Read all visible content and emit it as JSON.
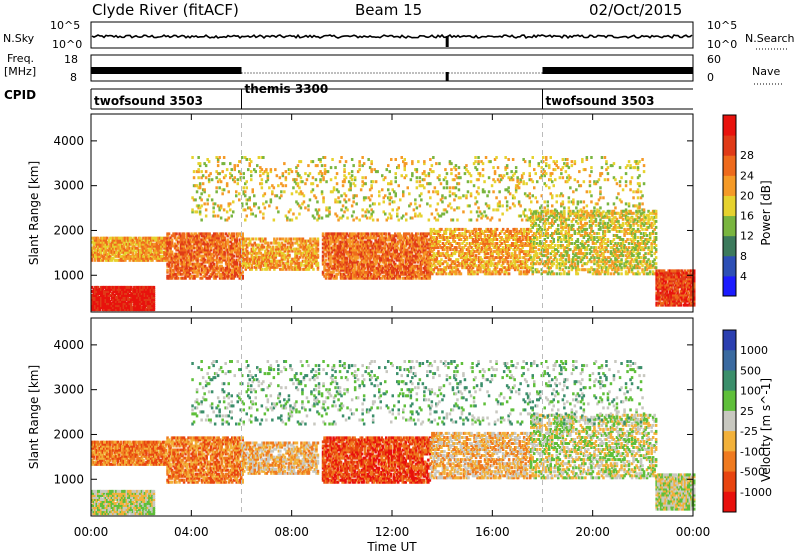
{
  "header": {
    "station": "Clyde River (fitACF)",
    "beam": "Beam 15",
    "date": "02/Oct/2015"
  },
  "noise_panel": {
    "left_label": "N.Sky",
    "left_ticks": [
      "10^5",
      "10^0"
    ],
    "right_label": "N.Search",
    "right_ticks": [
      "10^5",
      "10^0"
    ]
  },
  "freq_panel": {
    "left_label_line1": "Freq.",
    "left_label_line2": "[MHz]",
    "left_ticks": [
      "18",
      "8"
    ],
    "right_label": "Nave",
    "right_ticks": [
      "60",
      "0"
    ]
  },
  "cpid_panel": {
    "label": "CPID",
    "segments": [
      {
        "name": "twofsound 3503",
        "start_hour": 0
      },
      {
        "name": "themis 3300",
        "start_hour": 6
      },
      {
        "name": "twofsound 3503",
        "start_hour": 18
      }
    ]
  },
  "x_axis": {
    "label": "Time UT",
    "ticks": [
      "00:00",
      "04:00",
      "08:00",
      "12:00",
      "16:00",
      "20:00",
      "00:00"
    ],
    "tick_hours": [
      0,
      4,
      8,
      12,
      16,
      20,
      24
    ]
  },
  "power_panel": {
    "ylabel": "Slant Range [km]",
    "yticks": [
      1000,
      2000,
      3000,
      4000
    ],
    "colorbar_label": "Power [dB]",
    "colorbar_ticks": [
      "4",
      "8",
      "12",
      "16",
      "20",
      "24",
      "28"
    ],
    "colors": [
      "#1c1cff",
      "#2d4fb5",
      "#3c7a5c",
      "#79b53f",
      "#e6d22e",
      "#f59a27",
      "#ee6a1c",
      "#e03a17",
      "#e8120d"
    ]
  },
  "velocity_panel": {
    "ylabel": "Slant Range [km]",
    "yticks": [
      1000,
      2000,
      3000,
      4000
    ],
    "colorbar_label": "Velocity [m s^-1]",
    "colorbar_ticks": [
      "1000",
      "500",
      "100",
      "25",
      "-25",
      "-100",
      "-500",
      "-1000"
    ],
    "colors": [
      "#2b3fb0",
      "#3a6aa0",
      "#3b8f6b",
      "#5fbf3a",
      "#c8c8c0",
      "#f2b13a",
      "#ef7a1f",
      "#e8440f",
      "#e8100c"
    ]
  },
  "chart_data": {
    "type": "heatmap",
    "x_range_hours": [
      0,
      24
    ],
    "y_range_km": [
      180,
      4600
    ],
    "scatter_regions": [
      {
        "t0": 0.0,
        "t1": 2.5,
        "r0": 200,
        "r1": 700,
        "density": 0.95,
        "power_level": 8,
        "vel_level": 4
      },
      {
        "t0": 0.0,
        "t1": 3.0,
        "r0": 1300,
        "r1": 1800,
        "density": 0.85,
        "power_level": 5,
        "vel_level": 6
      },
      {
        "t0": 3.0,
        "t1": 6.0,
        "r0": 900,
        "r1": 1900,
        "density": 0.7,
        "power_level": 6,
        "vel_level": 6
      },
      {
        "t0": 6.0,
        "t1": 9.0,
        "r0": 1100,
        "r1": 1800,
        "density": 0.6,
        "power_level": 5,
        "vel_level": 5
      },
      {
        "t0": 9.2,
        "t1": 13.5,
        "r0": 900,
        "r1": 1900,
        "density": 0.75,
        "power_level": 6,
        "vel_level": 7
      },
      {
        "t0": 13.5,
        "t1": 17.5,
        "r0": 1000,
        "r1": 2000,
        "density": 0.55,
        "power_level": 5,
        "vel_level": 5
      },
      {
        "t0": 17.5,
        "t1": 22.5,
        "r0": 1000,
        "r1": 2400,
        "density": 0.45,
        "power_level": 4,
        "vel_level": 4
      },
      {
        "t0": 22.5,
        "t1": 24.0,
        "r0": 300,
        "r1": 1100,
        "density": 0.9,
        "power_level": 7,
        "vel_level": 4
      },
      {
        "t0": 4.0,
        "t1": 22.0,
        "r0": 2200,
        "r1": 3600,
        "density": 0.12,
        "power_level": 4,
        "vel_level": 3
      }
    ]
  }
}
